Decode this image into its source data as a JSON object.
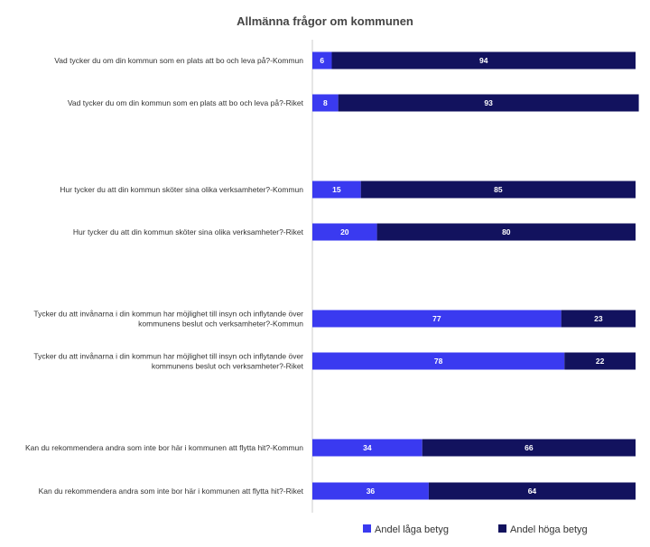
{
  "chart_data": {
    "type": "bar",
    "orientation": "horizontal",
    "stacked": true,
    "title": "Allmänna frågor om kommunen",
    "xlim": [
      0,
      100
    ],
    "legend_position": "bottom",
    "categories": [
      [
        "Vad tycker du om din kommun som en plats att bo och leva på?-Kommun"
      ],
      [
        "Vad tycker du om din kommun som en plats att bo och leva på?-Riket"
      ],
      [
        "Hur tycker du att din kommun sköter sina olika verksamheter?-Kommun"
      ],
      [
        "Hur tycker du att din kommun sköter sina olika verksamheter?-Riket"
      ],
      [
        "Tycker du att invånarna i din kommun har möjlighet till insyn och inflytande över",
        "kommunens beslut och verksamheter?-Kommun"
      ],
      [
        "Tycker du att invånarna i din kommun har möjlighet till insyn och inflytande över",
        "kommunens beslut och verksamheter?-Riket"
      ],
      [
        "Kan du rekommendera andra som inte bor här i kommunen att flytta hit?-Kommun"
      ],
      [
        "Kan du rekommendera andra som inte bor här i kommunen att flytta hit?-Riket"
      ]
    ],
    "series": [
      {
        "name": "Andel låga betyg",
        "color": "#3a3af0",
        "values": [
          6,
          8,
          15,
          20,
          77,
          78,
          34,
          36
        ]
      },
      {
        "name": "Andel höga betyg",
        "color": "#12125e",
        "values": [
          94,
          93,
          85,
          80,
          23,
          22,
          66,
          64
        ]
      }
    ]
  }
}
